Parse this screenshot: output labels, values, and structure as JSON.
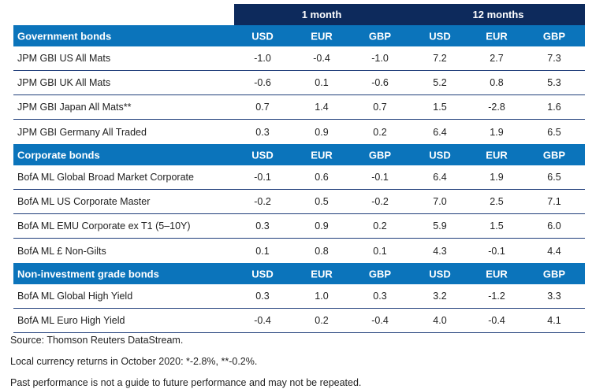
{
  "header": {
    "period1": "1 month",
    "period2": "12 months"
  },
  "sections": [
    {
      "title": "Government bonds",
      "cols": [
        "USD",
        "EUR",
        "GBP",
        "USD",
        "EUR",
        "GBP"
      ],
      "rows": [
        {
          "name": "JPM GBI US All Mats",
          "values": [
            "-1.0",
            "-0.4",
            "-1.0",
            "7.2",
            "2.7",
            "7.3"
          ]
        },
        {
          "name": "JPM GBI UK All Mats",
          "values": [
            "-0.6",
            "0.1",
            "-0.6",
            "5.2",
            "0.8",
            "5.3"
          ]
        },
        {
          "name": "JPM GBI Japan All Mats**",
          "values": [
            "0.7",
            "1.4",
            "0.7",
            "1.5",
            "-2.8",
            "1.6"
          ]
        },
        {
          "name": "JPM GBI Germany All Traded",
          "values": [
            "0.3",
            "0.9",
            "0.2",
            "6.4",
            "1.9",
            "6.5"
          ]
        }
      ]
    },
    {
      "title": "Corporate bonds",
      "cols": [
        "USD",
        "EUR",
        "GBP",
        "USD",
        "EUR",
        "GBP"
      ],
      "rows": [
        {
          "name": "BofA ML Global Broad Market Corporate",
          "values": [
            "-0.1",
            "0.6",
            "-0.1",
            "6.4",
            "1.9",
            "6.5"
          ]
        },
        {
          "name": "BofA ML US Corporate Master",
          "values": [
            "-0.2",
            "0.5",
            "-0.2",
            "7.0",
            "2.5",
            "7.1"
          ]
        },
        {
          "name": "BofA ML EMU Corporate ex T1 (5–10Y)",
          "values": [
            "0.3",
            "0.9",
            "0.2",
            "5.9",
            "1.5",
            "6.0"
          ]
        },
        {
          "name": "BofA ML £ Non-Gilts",
          "values": [
            "0.1",
            "0.8",
            "0.1",
            "4.3",
            "-0.1",
            "4.4"
          ]
        }
      ]
    },
    {
      "title": "Non-investment grade bonds",
      "cols": [
        "USD",
        "EUR",
        "GBP",
        "USD",
        "EUR",
        "GBP"
      ],
      "rows": [
        {
          "name": "BofA ML Global High Yield",
          "values": [
            "0.3",
            "1.0",
            "0.3",
            "3.2",
            "-1.2",
            "3.3"
          ]
        },
        {
          "name": "BofA ML Euro High Yield",
          "values": [
            "-0.4",
            "0.2",
            "-0.4",
            "4.0",
            "-0.4",
            "4.1"
          ]
        }
      ]
    }
  ],
  "footer": {
    "source": "Source: Thomson Reuters DataStream.",
    "note": "Local currency returns in October 2020: *-2.8%, **-0.2%.",
    "disclaimer": "Past performance is not a guide to future performance and may not be repeated."
  },
  "colors": {
    "navy": "#0d2a5c",
    "blue": "#0b74bb"
  }
}
